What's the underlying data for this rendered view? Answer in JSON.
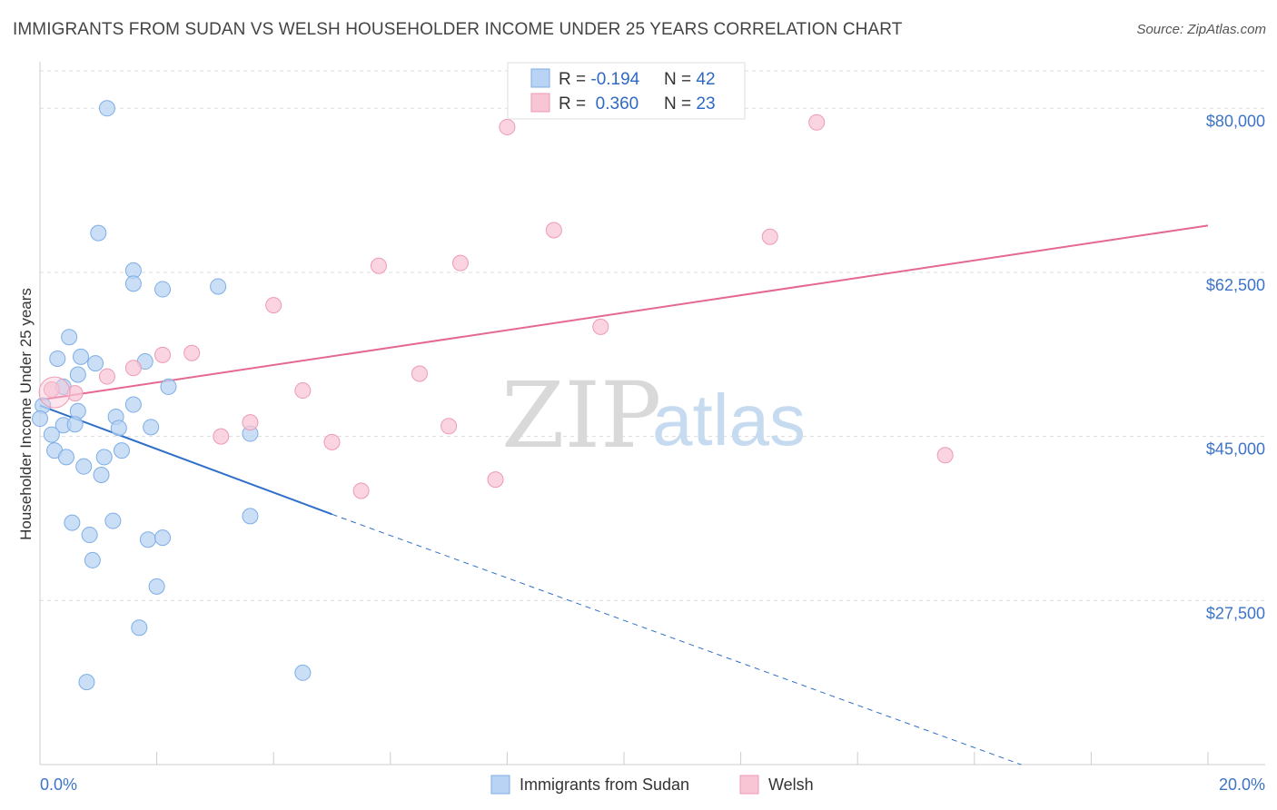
{
  "header": {
    "title": "IMMIGRANTS FROM SUDAN VS WELSH HOUSEHOLDER INCOME UNDER 25 YEARS CORRELATION CHART",
    "source": "Source: ZipAtlas.com"
  },
  "watermark": {
    "zip": "ZIP",
    "atlas": "atlas"
  },
  "colors": {
    "blue_fill": "#b8d3f3",
    "blue_stroke": "#7eaee6",
    "blue_line": "#2f6fc9",
    "pink_fill": "#f8c5d5",
    "pink_stroke": "#ee9ab4",
    "pink_line": "#e4688f",
    "axis_text": "#3d74c7",
    "grid": "#dddddd"
  },
  "legend": {
    "rows": [
      {
        "r_label": "R = ",
        "r_value": "-0.194",
        "n_label": "N = ",
        "n_value": "42"
      },
      {
        "r_label": "R = ",
        "r_value": " 0.360",
        "n_label": "N = ",
        "n_value": "23"
      }
    ]
  },
  "bottom_legend": {
    "items": [
      "Immigrants from Sudan",
      "Welsh"
    ]
  },
  "chart_data": {
    "type": "scatter",
    "title": "IMMIGRANTS FROM SUDAN VS WELSH HOUSEHOLDER INCOME UNDER 25 YEARS CORRELATION CHART",
    "xlabel": "",
    "ylabel": "Householder Income Under 25 years",
    "xlim": [
      0,
      20
    ],
    "ylim": [
      10000,
      84000
    ],
    "x_tick_labels": {
      "min": "0.0%",
      "max": "20.0%"
    },
    "y_ticks": [
      {
        "value": 80000,
        "label": "$80,000"
      },
      {
        "value": 62500,
        "label": "$62,500"
      },
      {
        "value": 45000,
        "label": "$45,000"
      },
      {
        "value": 27500,
        "label": "$27,500"
      }
    ],
    "series": [
      {
        "name": "Immigrants from Sudan",
        "color": "blue",
        "R": -0.194,
        "N": 42,
        "trend": {
          "x0": 0,
          "y0": 48300,
          "x1": 5.0,
          "y1": 36700,
          "dash_to_x": 16.8,
          "dash_to_y": 10000
        },
        "points": [
          [
            1.15,
            80000
          ],
          [
            1.0,
            66700
          ],
          [
            1.6,
            62700
          ],
          [
            1.6,
            61300
          ],
          [
            2.1,
            60700
          ],
          [
            3.05,
            61000
          ],
          [
            0.5,
            55600
          ],
          [
            0.3,
            53300
          ],
          [
            0.7,
            53500
          ],
          [
            0.95,
            52800
          ],
          [
            1.8,
            53000
          ],
          [
            0.65,
            51600
          ],
          [
            0.4,
            50300
          ],
          [
            2.2,
            50300
          ],
          [
            0.05,
            48300
          ],
          [
            1.6,
            48400
          ],
          [
            0.65,
            47700
          ],
          [
            1.3,
            47100
          ],
          [
            0.0,
            46900
          ],
          [
            0.4,
            46200
          ],
          [
            0.6,
            46300
          ],
          [
            1.35,
            45900
          ],
          [
            1.9,
            46000
          ],
          [
            3.6,
            45300
          ],
          [
            0.2,
            45200
          ],
          [
            0.25,
            43500
          ],
          [
            1.4,
            43500
          ],
          [
            0.45,
            42800
          ],
          [
            1.1,
            42800
          ],
          [
            0.75,
            41800
          ],
          [
            1.05,
            40900
          ],
          [
            0.55,
            35800
          ],
          [
            1.25,
            36000
          ],
          [
            3.6,
            36500
          ],
          [
            0.85,
            34500
          ],
          [
            1.85,
            34000
          ],
          [
            2.1,
            34200
          ],
          [
            0.9,
            31800
          ],
          [
            2.0,
            29000
          ],
          [
            1.7,
            24600
          ],
          [
            0.8,
            18800
          ],
          [
            4.5,
            19800
          ]
        ]
      },
      {
        "name": "Welsh",
        "color": "pink",
        "R": 0.36,
        "N": 23,
        "trend": {
          "x0": 0,
          "y0": 48900,
          "x1": 20,
          "y1": 67500
        },
        "points": [
          [
            8.0,
            78000
          ],
          [
            13.3,
            78500
          ],
          [
            8.8,
            67000
          ],
          [
            12.5,
            66300
          ],
          [
            7.2,
            63500
          ],
          [
            5.8,
            63200
          ],
          [
            4.0,
            59000
          ],
          [
            9.6,
            56700
          ],
          [
            2.1,
            53700
          ],
          [
            2.6,
            53900
          ],
          [
            1.6,
            52300
          ],
          [
            1.15,
            51400
          ],
          [
            6.5,
            51700
          ],
          [
            0.2,
            50000
          ],
          [
            0.6,
            49600
          ],
          [
            4.5,
            49900
          ],
          [
            3.6,
            46500
          ],
          [
            7.0,
            46100
          ],
          [
            3.1,
            45000
          ],
          [
            5.0,
            44400
          ],
          [
            15.5,
            43000
          ],
          [
            7.8,
            40400
          ],
          [
            5.5,
            39200
          ]
        ]
      }
    ]
  }
}
